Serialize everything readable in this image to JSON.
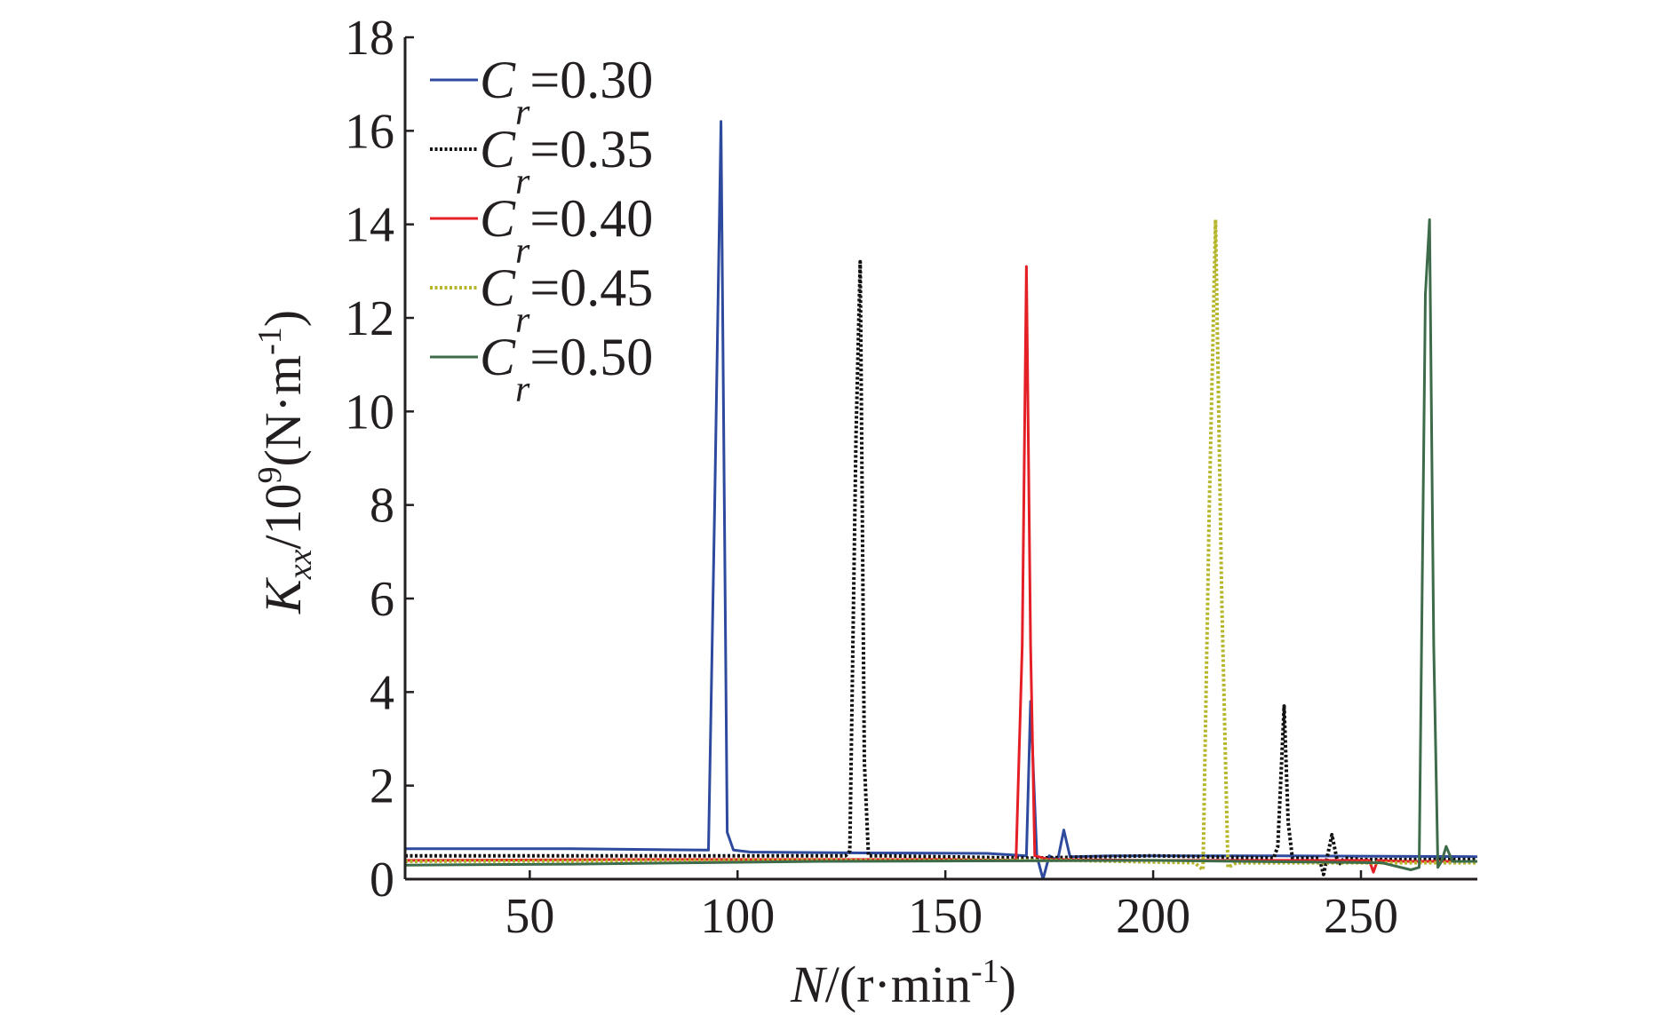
{
  "chart_data": {
    "type": "line",
    "xlabel": {
      "var": "N",
      "rest": "/(r·min",
      "sup": "-1",
      "close": ")"
    },
    "ylabel": {
      "var": "K",
      "sub": "xx",
      "mid": "/10",
      "exp": "9",
      "unit": "(N·m",
      "sup": "-1",
      "close": ")"
    },
    "xlim": [
      20,
      278
    ],
    "ylim": [
      0,
      18
    ],
    "x_ticks": [
      50,
      100,
      150,
      200,
      250
    ],
    "x_tick_labels": [
      "50",
      "100",
      "150",
      "200",
      "250"
    ],
    "y_ticks": [
      0,
      2,
      4,
      6,
      8,
      10,
      12,
      14,
      16,
      18
    ],
    "y_tick_labels": [
      "0",
      "2",
      "4",
      "6",
      "8",
      "10",
      "12",
      "14",
      "16",
      "18"
    ],
    "legend_position": "top-left",
    "series": [
      {
        "name": "Cr=0.30",
        "label_var": "C",
        "label_sub": "r",
        "label_val": "=0.30",
        "color": "#2e4a9e",
        "dash": "solid",
        "x": [
          20,
          60,
          93,
          94.5,
          96,
          97.5,
          99,
          103,
          130,
          160,
          169.5,
          170.5,
          172,
          173.5,
          175,
          177,
          178.5,
          180,
          190,
          230,
          278
        ],
        "y": [
          0.65,
          0.65,
          0.62,
          8.0,
          16.2,
          1.0,
          0.62,
          0.58,
          0.56,
          0.55,
          0.5,
          3.8,
          0.5,
          0.0,
          0.5,
          0.4,
          1.05,
          0.48,
          0.5,
          0.5,
          0.48
        ]
      },
      {
        "name": "Cr=0.35",
        "label_var": "C",
        "label_sub": "r",
        "label_val": "=0.35",
        "color": "#111111",
        "dash": "dotted",
        "x": [
          20,
          80,
          126,
          127,
          128.5,
          129.5,
          130.5,
          131.5,
          135,
          170,
          200,
          229,
          230,
          231.5,
          232.5,
          233.5,
          240,
          241,
          243,
          244.5,
          246,
          250,
          278
        ],
        "y": [
          0.5,
          0.5,
          0.5,
          0.6,
          9.5,
          13.2,
          2.5,
          0.5,
          0.5,
          0.45,
          0.5,
          0.45,
          0.7,
          3.7,
          1.2,
          0.45,
          0.45,
          0.1,
          0.95,
          0.3,
          0.45,
          0.42,
          0.42
        ]
      },
      {
        "name": "Cr=0.40",
        "label_var": "C",
        "label_sub": "r",
        "label_val": "=0.40",
        "color": "#e41f26",
        "dash": "solid",
        "x": [
          20,
          80,
          150,
          167,
          168.5,
          169.5,
          170.5,
          171.5,
          175,
          200,
          252,
          253,
          254,
          260,
          278
        ],
        "y": [
          0.4,
          0.42,
          0.42,
          0.4,
          5.0,
          13.1,
          5.0,
          0.5,
          0.42,
          0.4,
          0.4,
          0.15,
          0.4,
          0.38,
          0.38
        ]
      },
      {
        "name": "Cr=0.45",
        "label_var": "C",
        "label_sub": "r",
        "label_val": "=0.45",
        "color": "#b6b62c",
        "dash": "dotted",
        "x": [
          20,
          100,
          180,
          210,
          212,
          213.5,
          215,
          216.5,
          218,
          220,
          240,
          278
        ],
        "y": [
          0.38,
          0.4,
          0.4,
          0.35,
          0.2,
          8.0,
          14.1,
          6.0,
          0.25,
          0.35,
          0.35,
          0.35
        ]
      },
      {
        "name": "Cr=0.50",
        "label_var": "C",
        "label_sub": "r",
        "label_val": "=0.50",
        "color": "#3e6b4a",
        "dash": "solid",
        "x": [
          20,
          60,
          120,
          200,
          255,
          262,
          264,
          265.5,
          266.5,
          267.5,
          268.5,
          269.5,
          270.5,
          272,
          278
        ],
        "y": [
          0.3,
          0.32,
          0.38,
          0.4,
          0.35,
          0.2,
          0.25,
          12.5,
          14.1,
          5.0,
          0.25,
          0.4,
          0.7,
          0.38,
          0.38
        ]
      }
    ]
  }
}
